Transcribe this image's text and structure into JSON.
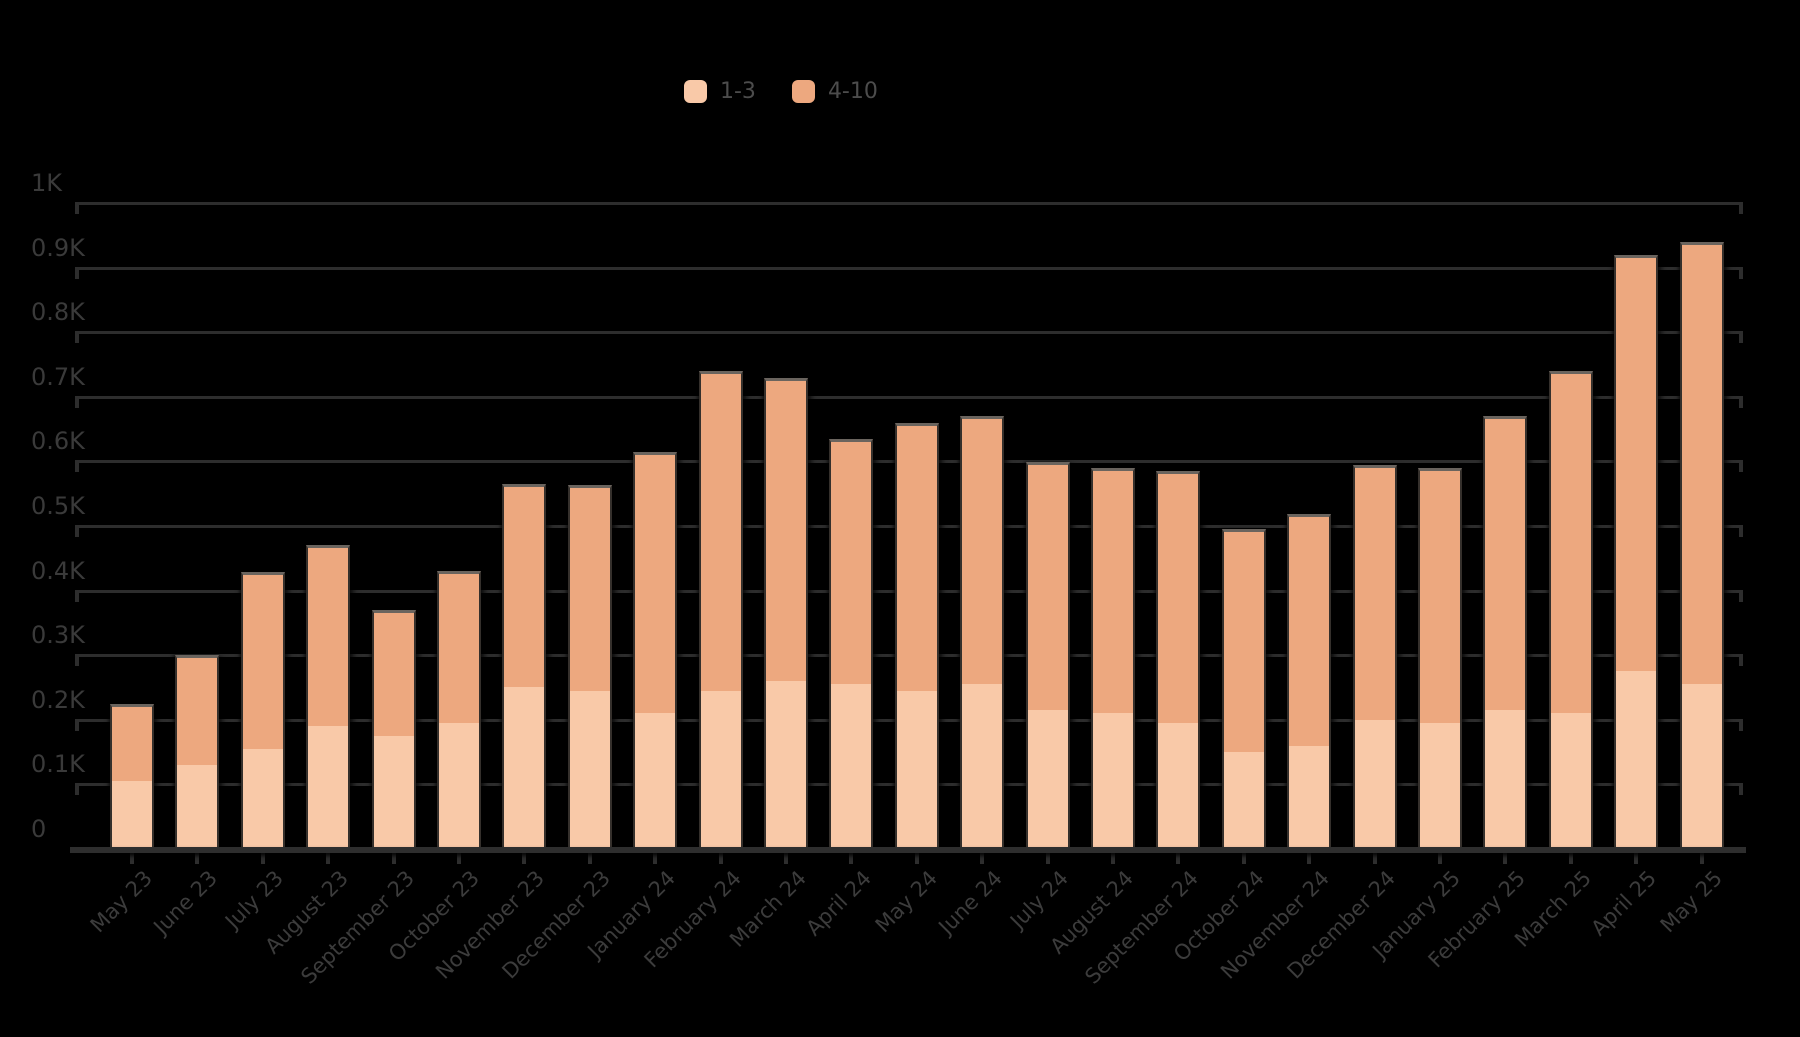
{
  "chart_data": {
    "type": "bar",
    "stacked": true,
    "title": "",
    "xlabel": "",
    "ylabel": "",
    "categories": [
      "May 23",
      "June 23",
      "July 23",
      "August 23",
      "September 23",
      "October 23",
      "November 23",
      "December 23",
      "January 24",
      "February 24",
      "March 24",
      "April 24",
      "May 24",
      "June 24",
      "July 24",
      "August 24",
      "September 24",
      "October 24",
      "November 24",
      "December 24",
      "January 25",
      "February 25",
      "March 25",
      "April 25",
      "May 25"
    ],
    "series": [
      {
        "name": "1-3",
        "color": "#f9c9a8",
        "values": [
          105,
          130,
          155,
          190,
          175,
          195,
          250,
          245,
          210,
          245,
          260,
          255,
          245,
          255,
          215,
          210,
          195,
          150,
          160,
          200,
          195,
          215,
          210,
          275,
          255
        ]
      },
      {
        "name": "4-10",
        "color": "#eda87f",
        "values": [
          115,
          165,
          270,
          275,
          190,
          230,
          310,
          315,
          400,
          490,
          465,
          375,
          410,
          410,
          380,
          375,
          385,
          340,
          355,
          390,
          390,
          450,
          525,
          640,
          680
        ]
      }
    ],
    "stack_totals": [
      220,
      295,
      425,
      465,
      365,
      425,
      560,
      560,
      610,
      735,
      725,
      630,
      655,
      665,
      595,
      585,
      580,
      490,
      515,
      590,
      585,
      665,
      735,
      915,
      935
    ],
    "ylim": [
      0,
      1000
    ],
    "ytick_step": 100,
    "ytick_labels": [
      "0",
      "0.1K",
      "0.2K",
      "0.3K",
      "0.4K",
      "0.5K",
      "0.6K",
      "0.7K",
      "0.8K",
      "0.9K",
      "1K"
    ],
    "grid": true,
    "legend_position": "top-center"
  },
  "legend": {
    "items": [
      {
        "label": "1-3"
      },
      {
        "label": "4-10"
      }
    ]
  },
  "colors": {
    "background": "#000000",
    "gridline": "#2d2d2d",
    "axis_label": "#3a3a3a",
    "legend_text": "#4c4c4c",
    "bar_border": "#35302c",
    "bar_top_cap": "#6a645e",
    "series_1_3": "#f9c9a8",
    "series_4_10": "#eda87f"
  }
}
